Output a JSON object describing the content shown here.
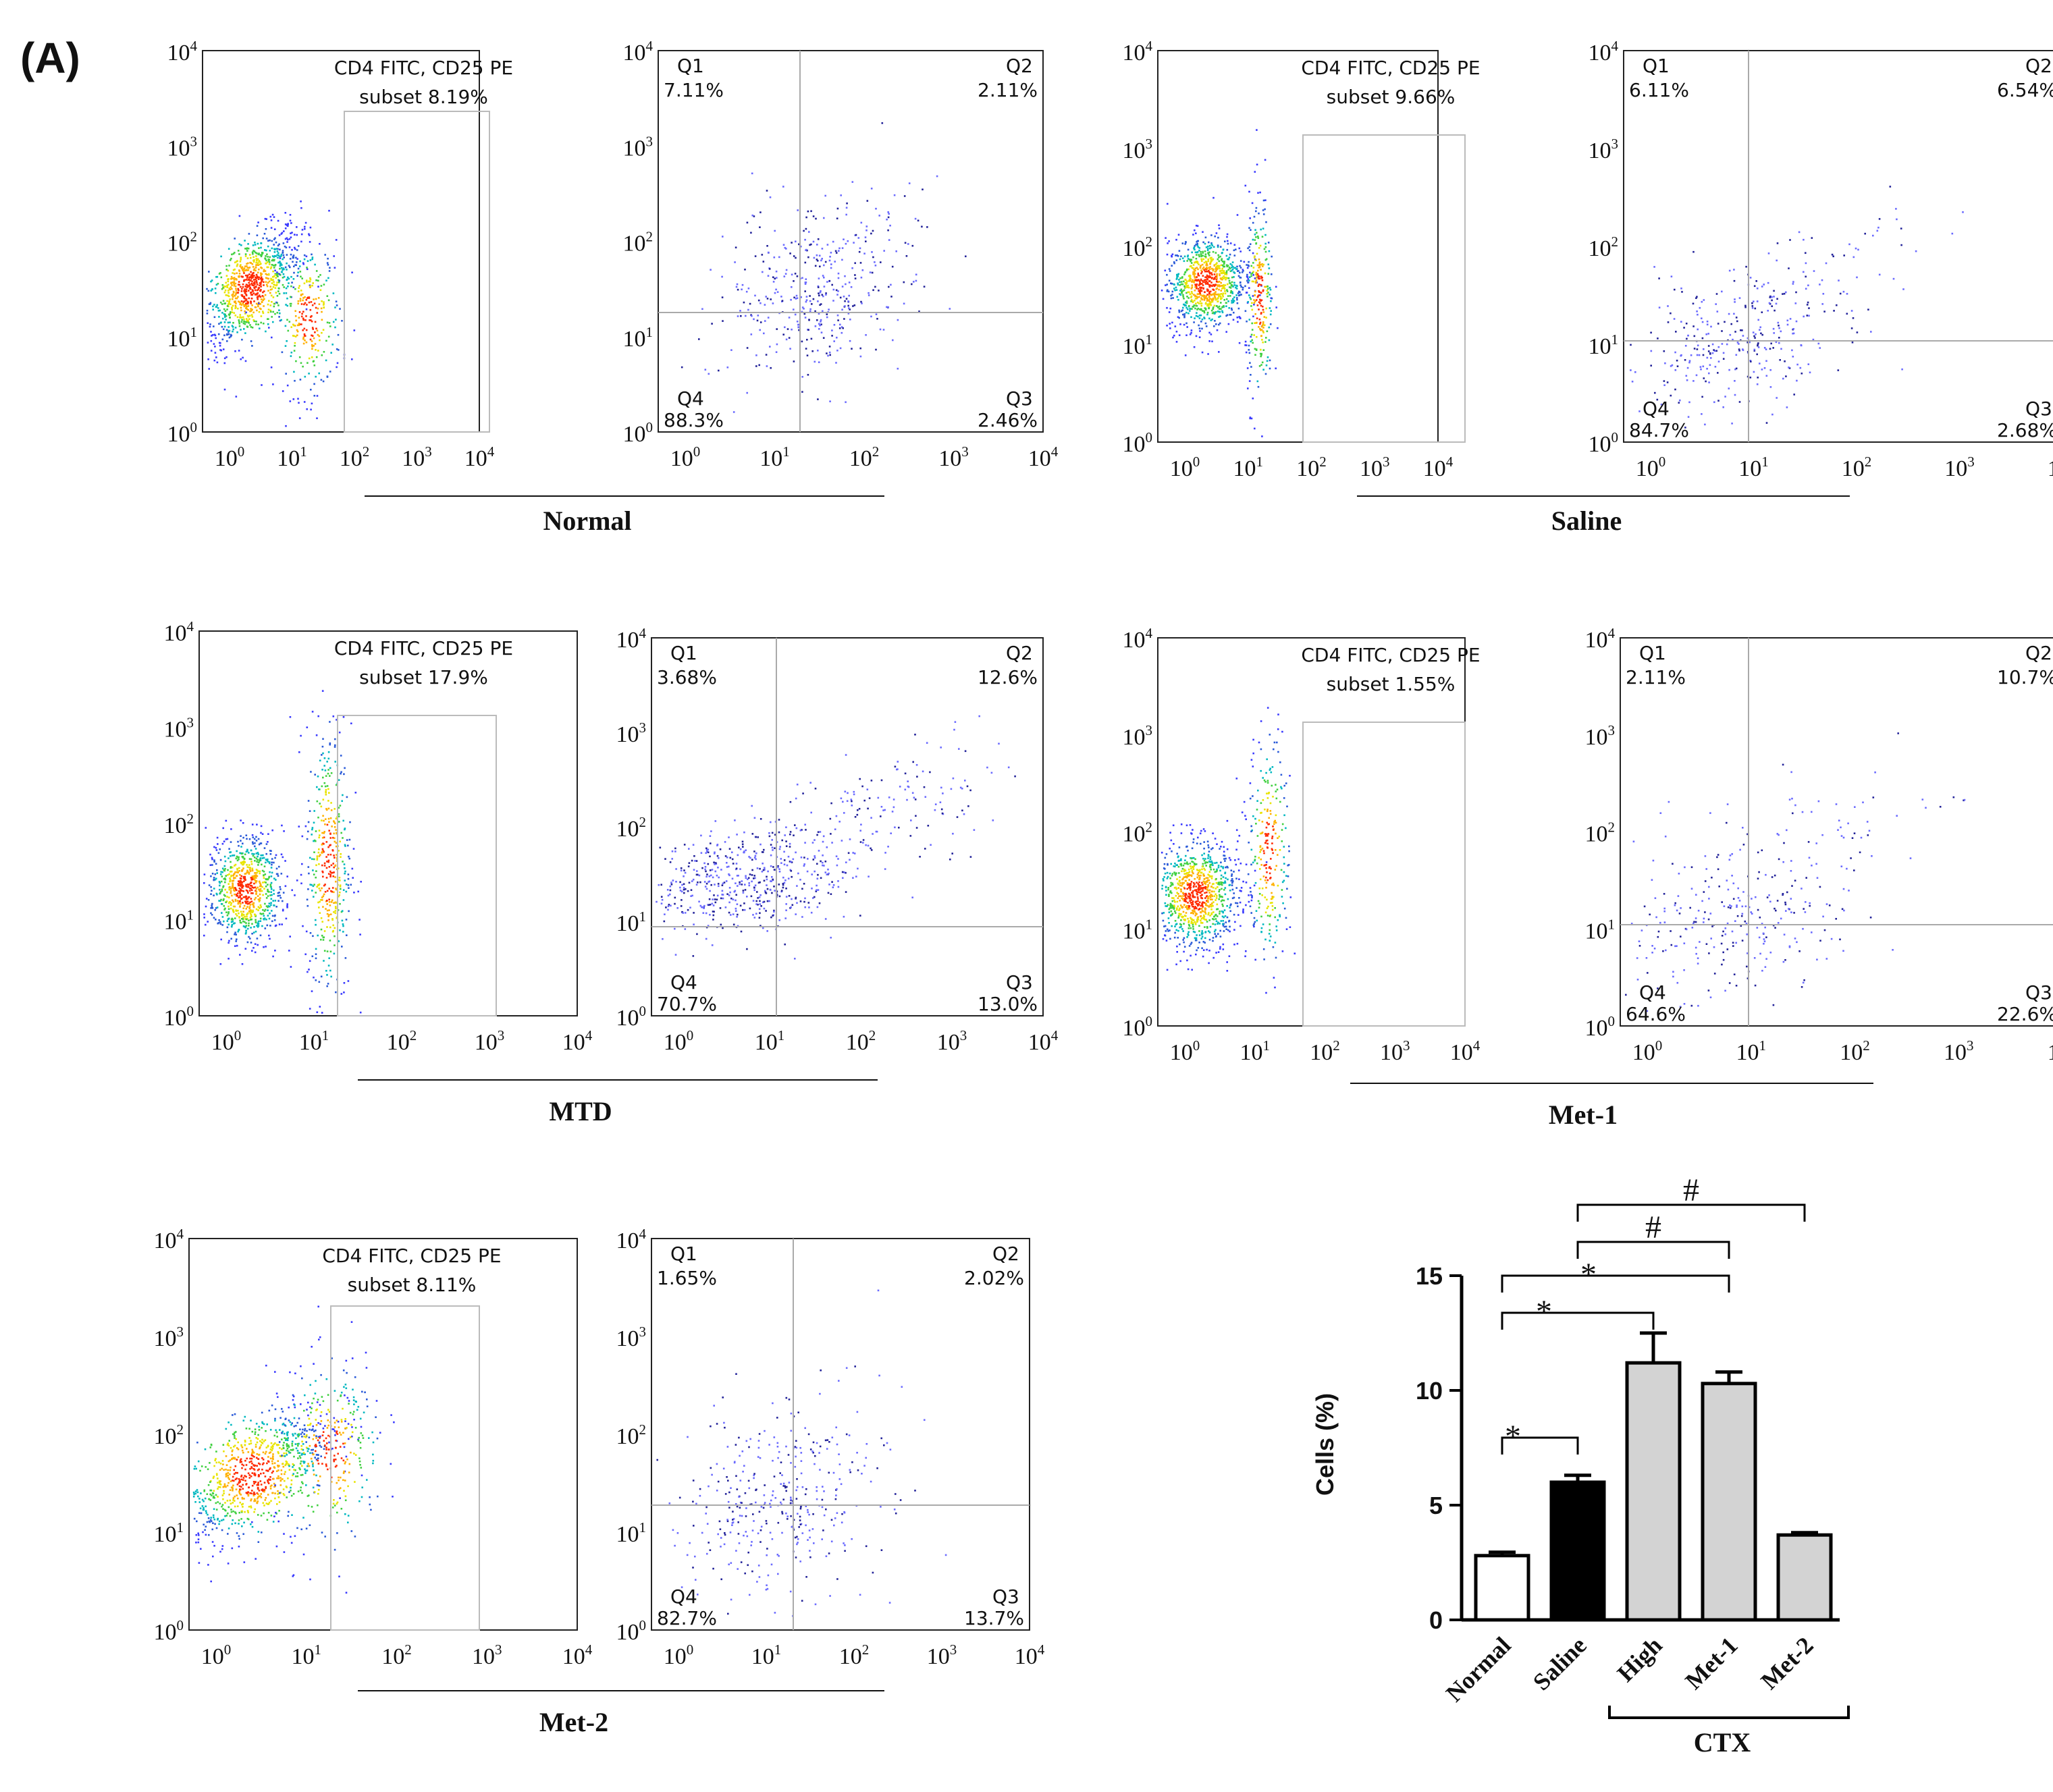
{
  "panel_label": "(A)",
  "flow_axis_ticks": [
    "10",
    "0",
    "1",
    "2",
    "3",
    "4"
  ],
  "gate_title": "CD4 FITC, CD25 PE",
  "quadrant_names": [
    "Q1",
    "Q2",
    "Q3",
    "Q4"
  ],
  "flow_panels": [
    {
      "group": "Normal",
      "subset": "subset 8.19%",
      "q1": "7.11%",
      "q2": "2.11%",
      "q3": "2.46%",
      "q4": "88.3%"
    },
    {
      "group": "Saline",
      "subset": "subset 9.66%",
      "q1": "6.11%",
      "q2": "6.54%",
      "q3": "2.68%",
      "q4": "84.7%"
    },
    {
      "group": "MTD",
      "subset": "subset 17.9%",
      "q1": "3.68%",
      "q2": "12.6%",
      "q3": "13.0%",
      "q4": "70.7%"
    },
    {
      "group": "Met-1",
      "subset": "subset 1.55%",
      "q1": "2.11%",
      "q2": "10.7%",
      "q3": "22.6%",
      "q4": "64.6%"
    },
    {
      "group": "Met-2",
      "subset": "subset 8.11%",
      "q1": "1.65%",
      "q2": "2.02%",
      "q3": "13.7%",
      "q4": "82.7%"
    }
  ],
  "chart_data": {
    "type": "bar",
    "title": "",
    "xlabel": "",
    "ylabel": "Cells (%)",
    "ylim": [
      0,
      15
    ],
    "yticks": [
      0,
      5,
      10,
      15
    ],
    "categories": [
      "Normal",
      "Saline",
      "High",
      "Met-1",
      "Met-2"
    ],
    "values": [
      2.8,
      6.0,
      11.2,
      10.3,
      3.7
    ],
    "errors": [
      0.15,
      0.3,
      1.3,
      0.5,
      0.1
    ],
    "bar_colors": [
      "#ffffff",
      "#000000",
      "#d3d3d3",
      "#d3d3d3",
      "#d3d3d3"
    ],
    "group_bracket_label": "CTX",
    "group_bracket_members": [
      "High",
      "Met-1",
      "Met-2"
    ],
    "significance": [
      {
        "from": "Normal",
        "to": "Saline",
        "label": "*"
      },
      {
        "from": "Normal",
        "to": "High",
        "label": "*"
      },
      {
        "from": "Normal",
        "to": "Met-1",
        "label": "*"
      },
      {
        "from": "Saline",
        "to": "Met-1",
        "label": "#"
      },
      {
        "from": "Saline",
        "to": "Met-2",
        "label": "#"
      }
    ]
  }
}
